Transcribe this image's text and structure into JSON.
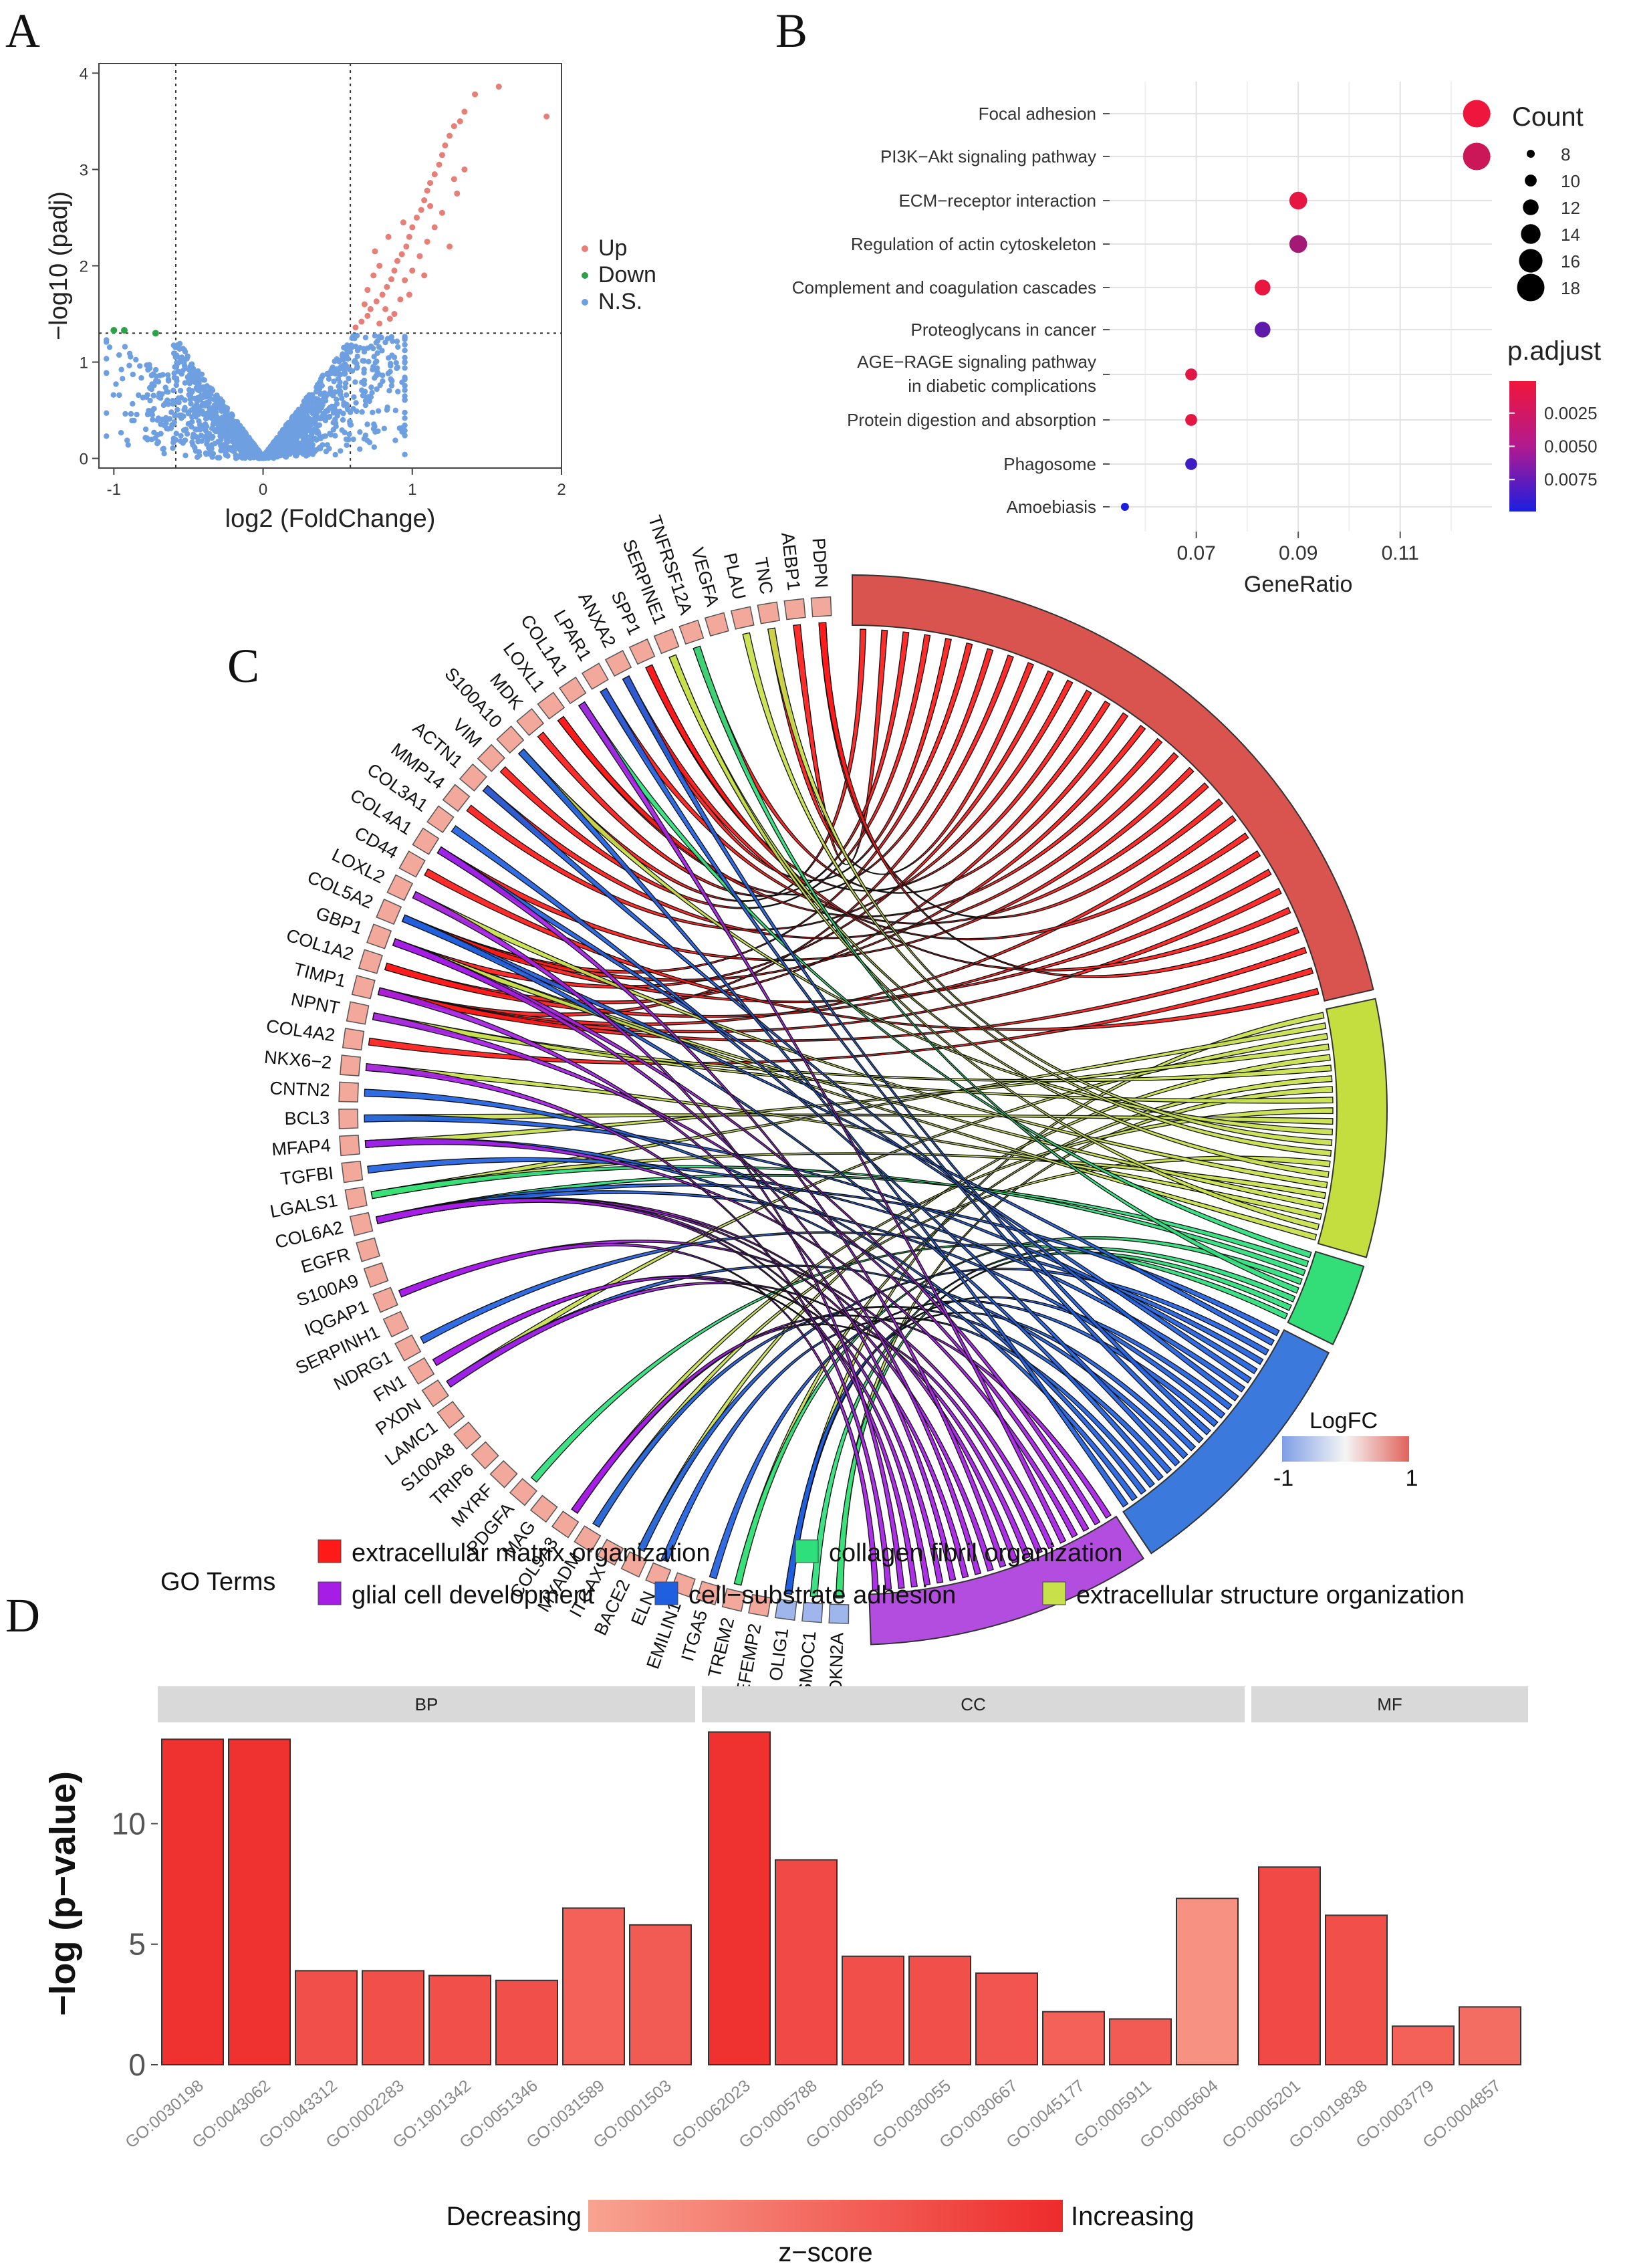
{
  "panels": {
    "a": "A",
    "b": "B",
    "c": "C",
    "d": "D"
  },
  "chart_data": [
    {
      "type": "scatter",
      "panel": "A",
      "xlabel": "log2 (FoldChange)",
      "ylabel": "−log10 (padj)",
      "xlim": [
        -1.1,
        2.0
      ],
      "ylim": [
        -0.1,
        4.1
      ],
      "xticks": [
        "-1",
        "0",
        "1",
        "2"
      ],
      "yticks": [
        "0",
        "1",
        "2",
        "3",
        "4"
      ],
      "thresholds": {
        "x": [
          -0.585,
          0.585
        ],
        "y": 1.301
      },
      "legend": {
        "up": "Up",
        "down": "Down",
        "ns": "N.S.",
        "colors": {
          "up": "#e57f77",
          "down": "#2ea24a",
          "ns": "#6e9fe0"
        }
      },
      "down_points": [
        [
          -1.0,
          1.33
        ],
        [
          -0.93,
          1.33
        ],
        [
          -0.72,
          1.3
        ]
      ],
      "up_points": [
        [
          0.62,
          1.36
        ],
        [
          0.66,
          1.42
        ],
        [
          0.7,
          1.48
        ],
        [
          0.72,
          1.55
        ],
        [
          0.76,
          1.63
        ],
        [
          0.8,
          1.7
        ],
        [
          0.83,
          1.78
        ],
        [
          0.86,
          1.86
        ],
        [
          0.88,
          1.95
        ],
        [
          0.9,
          2.05
        ],
        [
          0.93,
          2.12
        ],
        [
          0.96,
          2.2
        ],
        [
          0.98,
          2.3
        ],
        [
          1.0,
          2.4
        ],
        [
          1.03,
          2.5
        ],
        [
          1.06,
          2.58
        ],
        [
          1.08,
          2.68
        ],
        [
          1.1,
          2.78
        ],
        [
          1.12,
          2.86
        ],
        [
          1.15,
          2.95
        ],
        [
          1.18,
          3.05
        ],
        [
          1.2,
          3.15
        ],
        [
          1.22,
          3.25
        ],
        [
          1.25,
          3.35
        ],
        [
          1.28,
          3.45
        ],
        [
          1.32,
          3.5
        ],
        [
          1.35,
          3.6
        ],
        [
          1.42,
          3.78
        ],
        [
          1.58,
          3.86
        ],
        [
          1.9,
          3.55
        ],
        [
          0.7,
          1.75
        ],
        [
          0.74,
          1.9
        ],
        [
          0.78,
          2.0
        ],
        [
          0.82,
          1.55
        ],
        [
          0.85,
          1.45
        ],
        [
          0.92,
          1.65
        ],
        [
          0.95,
          1.85
        ],
        [
          1.0,
          1.95
        ],
        [
          1.05,
          2.1
        ],
        [
          1.1,
          2.25
        ],
        [
          1.15,
          2.4
        ],
        [
          1.2,
          2.55
        ],
        [
          1.3,
          2.75
        ],
        [
          1.35,
          3.0
        ],
        [
          0.68,
          1.6
        ],
        [
          0.78,
          1.4
        ],
        [
          0.88,
          1.5
        ],
        [
          0.98,
          1.7
        ],
        [
          1.08,
          1.9
        ],
        [
          1.25,
          2.2
        ],
        [
          0.75,
          2.15
        ],
        [
          0.84,
          2.3
        ],
        [
          0.94,
          2.45
        ],
        [
          1.12,
          2.62
        ],
        [
          1.28,
          2.9
        ]
      ],
      "ns_seed": 7,
      "ns_count": 1600
    },
    {
      "type": "scatter",
      "panel": "B",
      "subtype": "dotplot",
      "xlabel": "GeneRatio",
      "xlim": [
        0.053,
        0.128
      ],
      "xticks": [
        0.07,
        0.09,
        0.11
      ],
      "xtick_labels": [
        "0.07",
        "0.09",
        "0.11"
      ],
      "categories": [
        "Focal adhesion",
        "PI3K−Akt signaling pathway",
        "ECM−receptor interaction",
        "Regulation of actin cytoskeleton",
        "Complement and coagulation cascades",
        "Proteoglycans in cancer",
        "AGE−RAGE signaling pathway|in diabetic complications",
        "Protein digestion and absorption",
        "Phagosome",
        "Amoebiasis"
      ],
      "gene_ratio": [
        0.125,
        0.125,
        0.09,
        0.09,
        0.083,
        0.083,
        0.069,
        0.069,
        0.069,
        0.056
      ],
      "count": [
        18,
        18,
        13,
        13,
        12,
        12,
        10,
        10,
        10,
        8
      ],
      "p_adjust": [
        0.0002,
        0.0018,
        0.0006,
        0.0036,
        0.0004,
        0.0068,
        0.0008,
        0.0007,
        0.0083,
        0.0098
      ],
      "size_legend": {
        "title": "Count",
        "labels": [
          "8",
          "10",
          "12",
          "14",
          "16",
          "18"
        ],
        "values": [
          8,
          10,
          12,
          14,
          16,
          18
        ]
      },
      "color_legend": {
        "title": "p.adjust",
        "labels": [
          "0.0025",
          "0.0050",
          "0.0075"
        ],
        "values": [
          0.0025,
          0.005,
          0.0075
        ],
        "range": [
          0.0001,
          0.0099
        ],
        "low_color": "#f0163a",
        "high_color": "#1b1ee0"
      }
    },
    {
      "type": "chord",
      "panel": "C",
      "genes": [
        "PDPN",
        "AEBP1",
        "TNC",
        "PLAU",
        "VEGFA",
        "TNFRSF12A",
        "SERPINE1",
        "SPP1",
        "ANXA2",
        "LPAR1",
        "COL1A1",
        "LOXL1",
        "MDK",
        "S100A10",
        "VIM",
        "ACTN1",
        "MMP14",
        "COL3A1",
        "COL4A1",
        "CD44",
        "LOXL2",
        "COL5A2",
        "GBP1",
        "COL1A2",
        "TIMP1",
        "NPNT",
        "COL4A2",
        "NKX6−2",
        "CNTN2",
        "BCL3",
        "MFAP4",
        "TGFBI",
        "LGALS1",
        "COL6A2",
        "EGFR",
        "S100A9",
        "IQGAP1",
        "SERPINH1",
        "NDRG1",
        "FN1",
        "PXDN",
        "LAMC1",
        "S100A8",
        "TRIP6",
        "MYRF",
        "PDGFA",
        "MAG",
        "COL9A3",
        "MYADM",
        "ITGAX",
        "BACE2",
        "ELN",
        "EMILIN1",
        "ITGA5",
        "TREM2",
        "EFEMP2",
        "OLIG1",
        "SMOC1",
        "CDKN2A"
      ],
      "logfc_down_genes": [
        "OLIG1",
        "SMOC1",
        "CDKN2A"
      ],
      "logfc_legend": {
        "title": "LogFC",
        "min": "-1",
        "max": "1",
        "low_color": "#7f9ee6",
        "mid_color": "#f5f5f5",
        "high_color": "#e0635b"
      },
      "terms": [
        {
          "name": "extracellular matrix organization",
          "color": "#ff1a1a",
          "arc_color": "#d9534f"
        },
        {
          "name": "extracellular structure organization",
          "color": "#c8e04a",
          "arc_color": "#c4dd3f"
        },
        {
          "name": "collagen fibril organization",
          "color": "#2ee07c",
          "arc_color": "#33dd77"
        },
        {
          "name": "cell−substrate adhesion",
          "color": "#1f5fe0",
          "arc_color": "#3b79dc"
        },
        {
          "name": "glial cell development",
          "color": "#a61de6",
          "arc_color": "#b24de0"
        }
      ],
      "legend_title": "GO Terms"
    },
    {
      "type": "bar",
      "panel": "D",
      "ylabel": "−log (p−value)",
      "ylim": [
        0,
        14.2
      ],
      "yticks": [
        0,
        5,
        10
      ],
      "facets": [
        {
          "name": "BP",
          "categories": [
            "GO:0030198",
            "GO:0043062",
            "GO:0043312",
            "GO:0002283",
            "GO:1901342",
            "GO:0051346",
            "GO:0031589",
            "GO:0001503"
          ],
          "values": [
            13.5,
            13.5,
            3.9,
            3.9,
            3.7,
            3.5,
            6.5,
            5.8
          ],
          "zscore": [
            0.95,
            0.95,
            0.7,
            0.7,
            0.7,
            0.7,
            0.55,
            0.6
          ]
        },
        {
          "name": "CC",
          "categories": [
            "GO:0062023",
            "GO:0005788",
            "GO:0005925",
            "GO:0030055",
            "GO:0030667",
            "GO:0045177",
            "GO:0005911",
            "GO:0005604"
          ],
          "values": [
            13.8,
            8.5,
            4.5,
            4.5,
            3.8,
            2.2,
            1.9,
            6.9
          ],
          "zscore": [
            0.95,
            0.75,
            0.7,
            0.7,
            0.65,
            0.55,
            0.6,
            0.15
          ]
        },
        {
          "name": "MF",
          "categories": [
            "GO:0005201",
            "GO:0019838",
            "GO:0003779",
            "GO:0004857"
          ],
          "values": [
            8.2,
            6.2,
            1.6,
            2.4
          ],
          "zscore": [
            0.75,
            0.7,
            0.55,
            0.45
          ]
        }
      ],
      "legend": {
        "low": "Decreasing",
        "high": "Increasing",
        "title": "z−score",
        "low_color": "#f8a391",
        "high_color": "#ee2b2b"
      }
    }
  ]
}
